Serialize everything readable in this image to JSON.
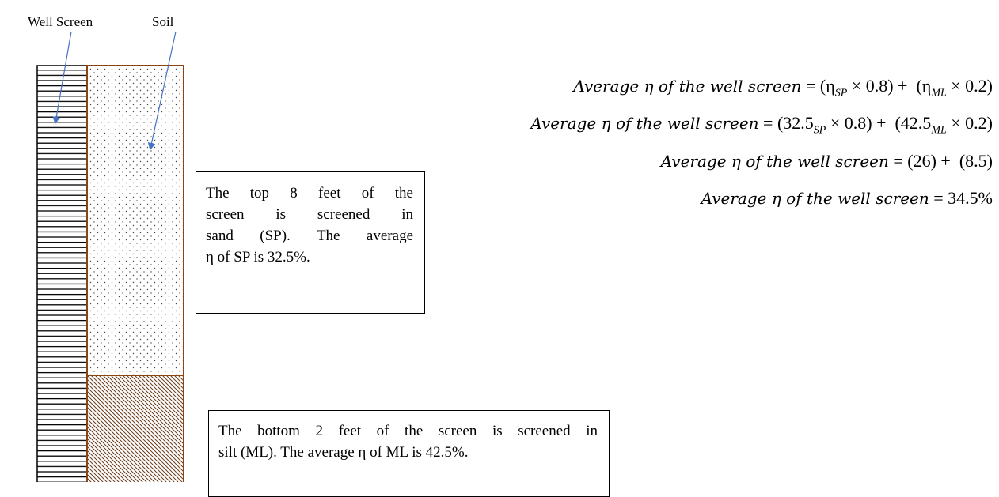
{
  "labels": {
    "well_screen": "Well Screen",
    "soil": "Soil"
  },
  "sand_note": {
    "lines": [
      "The top 8 feet of the",
      "screen is screened in",
      "sand (SP). The average",
      "η of SP is 32.5%."
    ]
  },
  "silt_note": {
    "lines": [
      "The bottom 2 feet of the screen is screened in",
      "silt (ML). The average η of ML is 42.5%."
    ]
  },
  "equations": [
    {
      "lhs": "Average η of the well screen",
      "rhs": [
        {
          "text": "= (η"
        },
        {
          "sub": "SP"
        },
        {
          "text": " × 0.8) +  (η"
        },
        {
          "sub": "ML"
        },
        {
          "text": " × 0.2)"
        }
      ]
    },
    {
      "lhs": "Average η of the well screen",
      "rhs": [
        {
          "text": "= (32.5"
        },
        {
          "sub": "SP"
        },
        {
          "text": " × 0.8) +  (42.5"
        },
        {
          "sub": "ML"
        },
        {
          "text": " × 0.2)"
        }
      ]
    },
    {
      "lhs": "Average η of the well screen",
      "rhs": [
        {
          "text": "= (26) +  (8.5)"
        }
      ]
    },
    {
      "lhs": "Average η of the well screen",
      "rhs": [
        {
          "text": "= 34.5%"
        }
      ]
    }
  ]
}
